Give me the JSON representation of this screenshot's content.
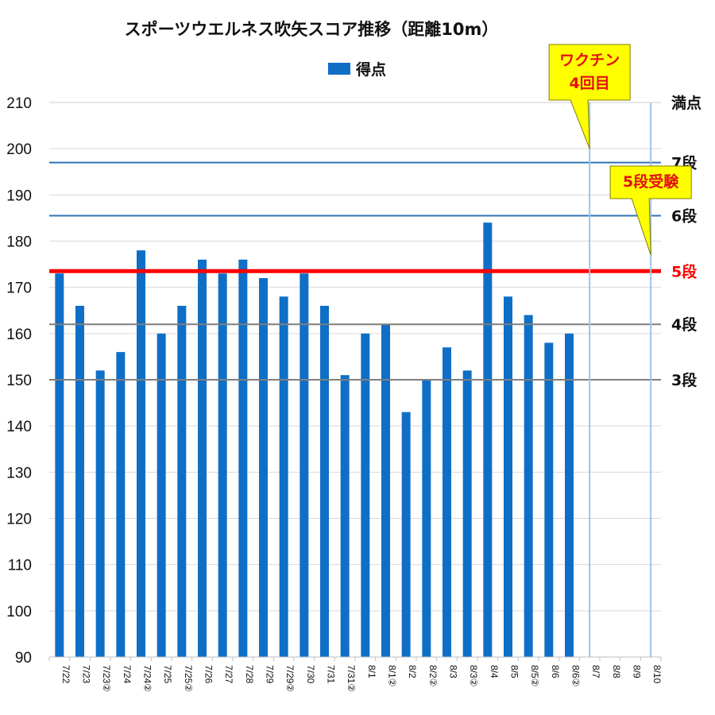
{
  "chart_data": {
    "type": "bar",
    "title": "スポーツウエルネス吹矢スコア推移（距離10m）",
    "legend": {
      "label": "得点",
      "color": "#0f6fc6",
      "placement": "top"
    },
    "ylim": [
      90,
      210
    ],
    "yticks": [
      90,
      100,
      110,
      120,
      130,
      140,
      150,
      160,
      170,
      180,
      190,
      200,
      210
    ],
    "grid": true,
    "categories": [
      "7/22",
      "7/23",
      "7/23②",
      "7/24",
      "7/24②",
      "7/25",
      "7/25②",
      "7/26",
      "7/27",
      "7/28",
      "7/29",
      "7/29②",
      "7/30",
      "7/31",
      "7/31②",
      "8/1",
      "8/1②",
      "8/2",
      "8/2②",
      "8/3",
      "8/3②",
      "8/4",
      "8/5",
      "8/5②",
      "8/6",
      "8/6②",
      "8/7",
      "8/8",
      "8/9",
      "8/10"
    ],
    "series": [
      {
        "name": "得点",
        "color": "#0f6fc6",
        "values": [
          173,
          166,
          152,
          156,
          178,
          160,
          166,
          176,
          173,
          176,
          172,
          168,
          173,
          166,
          151,
          160,
          162,
          143,
          150,
          157,
          152,
          184,
          168,
          164,
          158,
          160,
          null,
          null,
          null,
          null
        ]
      }
    ],
    "reference_lines": [
      {
        "label": "満点",
        "value": 210,
        "color": "#cccccc",
        "width": 1,
        "label_color": "#111111"
      },
      {
        "label": "7段",
        "value": 197,
        "color": "#2f75b5",
        "width": 2,
        "label_color": "#111111"
      },
      {
        "label": "6段",
        "value": 185.5,
        "color": "#2f75b5",
        "width": 2,
        "label_color": "#111111"
      },
      {
        "label": "5段",
        "value": 173.5,
        "color": "#ff0000",
        "width": 5,
        "label_color": "#ff0000"
      },
      {
        "label": "4段",
        "value": 162,
        "color": "#7f7f7f",
        "width": 2,
        "label_color": "#111111"
      },
      {
        "label": "3段",
        "value": 150,
        "color": "#7f7f7f",
        "width": 2,
        "label_color": "#111111"
      }
    ],
    "event_markers": [
      {
        "category": "8/7",
        "value": 200,
        "lines": [
          "ワクチン",
          "4回目"
        ]
      },
      {
        "category": "8/10",
        "value": 177,
        "lines": [
          "5段受験"
        ]
      }
    ]
  }
}
